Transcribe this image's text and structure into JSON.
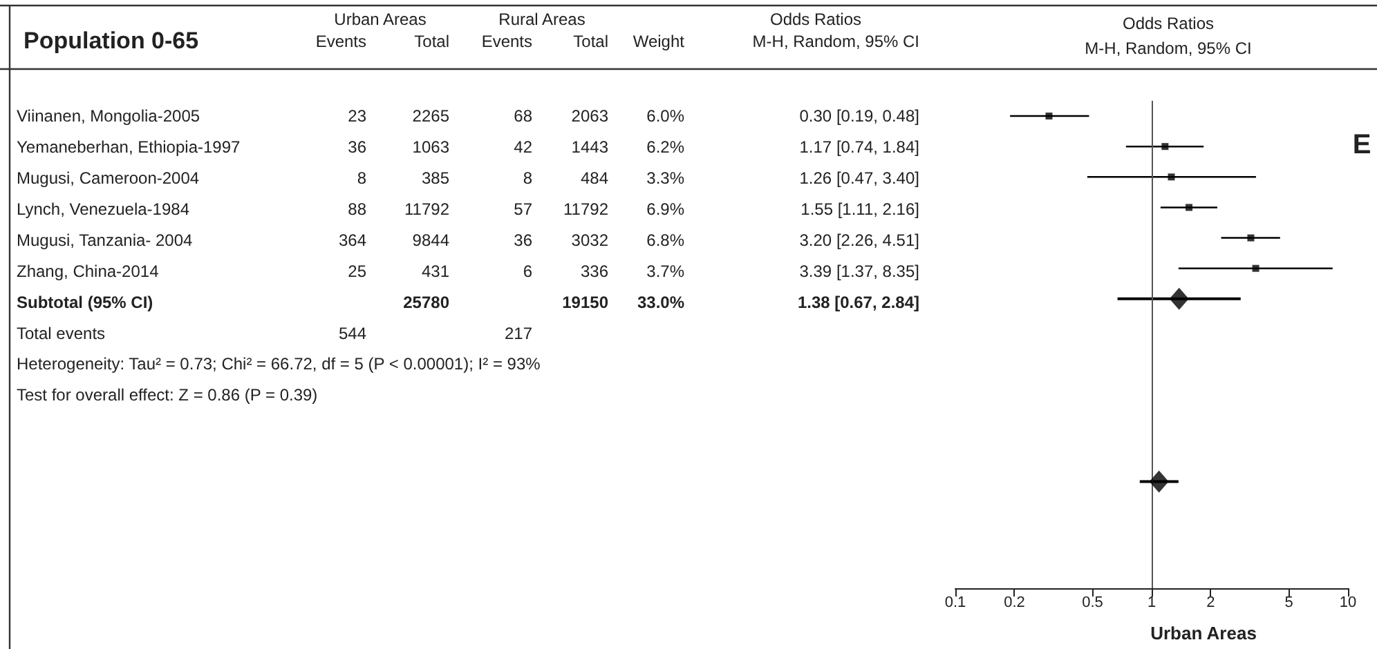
{
  "chart_data": [
    {
      "type": "other",
      "title": "Population 0-65",
      "annotations": [
        "Urban Areas",
        "Rural Areas",
        "Odds Ratios"
      ],
      "categories": [
        "Viinanen, Mongolia-2005",
        "Yemaneberhan, Ethiopia-1997",
        "Mugusi, Cameroon-2004",
        "Lynch, Venezuela-1984",
        "Mugusi, Tanzania- 2004",
        "Zhang, China-2014",
        "Subtotal (95% CI)",
        "Total events",
        "Heterogeneity: Tau² = 0.73; Chi² = 66.72, df = 5 (P < 0.00001); I² = 93%",
        "Test for overall effect: Z = 0.86 (P = 0.39)"
      ],
      "data_labels": true,
      "series": [
        {
          "name": "Events",
          "values": [
            23,
            36,
            8,
            88,
            364,
            25,
            null,
            544,
            null,
            null
          ]
        },
        {
          "name": "Total",
          "values": [
            2265,
            1063,
            385,
            11792,
            9844,
            431,
            25780,
            null,
            null,
            null
          ]
        },
        {
          "name": "Events",
          "values": [
            68,
            42,
            8,
            57,
            36,
            6,
            null,
            217,
            null,
            null
          ]
        },
        {
          "name": "Total",
          "values": [
            2063,
            1443,
            484,
            11792,
            3032,
            336,
            19150,
            null,
            null,
            null
          ]
        },
        {
          "name": "Weight",
          "values": [
            6.0,
            6.2,
            3.3,
            6.9,
            6.8,
            3.7,
            33.0,
            null,
            null,
            null
          ],
          "value_labels": [
            "6.0%",
            "6.2%",
            "3.3%",
            "6.9%",
            "6.8%",
            "3.7%",
            "33.0%",
            null,
            null,
            null
          ]
        },
        {
          "name": "M-H, Random, 95% CI",
          "values": [
            0.3,
            1.17,
            1.26,
            1.55,
            3.2,
            3.39,
            1.38,
            null,
            null,
            null
          ],
          "value_labels": [
            "0.30 [0.19, 0.48]",
            "1.17 [0.74, 1.84]",
            "1.26 [0.47, 3.40]",
            "1.55 [1.11, 2.16]",
            "3.20 [2.26, 4.51]",
            "3.39 [1.37, 8.35]",
            "1.38 [0.67, 2.84]",
            null,
            null,
            null
          ]
        }
      ]
    },
    {
      "type": "scatter",
      "orientation": "horizontal",
      "title": "Odds Ratios",
      "subtitle": "M-H, Random, 95% CI",
      "xlabel": "Urban Areas",
      "annotations": [
        "E"
      ],
      "log": "x",
      "xlim": [
        0.1,
        10
      ],
      "xticks": [
        0.1,
        0.2,
        0.5,
        1,
        2,
        5,
        10
      ],
      "ref_lines": [
        {
          "axis": "x",
          "value": 1
        }
      ],
      "categories": [
        null,
        null,
        null,
        null,
        null,
        null,
        null,
        null,
        null,
        null,
        null,
        null,
        null,
        null,
        null,
        null
      ],
      "series": [
        {
          "marker": "square",
          "color": "#000000",
          "values": [
            0.3,
            1.17,
            1.26,
            1.55,
            3.2,
            3.39,
            null,
            null,
            null,
            null,
            null,
            null,
            null,
            null,
            null,
            null
          ],
          "errors": [
            [
              0.19,
              0.48
            ],
            [
              0.74,
              1.84
            ],
            [
              0.47,
              3.4
            ],
            [
              1.11,
              2.16
            ],
            [
              2.26,
              4.51
            ],
            [
              1.37,
              8.35
            ],
            null,
            null,
            null,
            null,
            null,
            null,
            null,
            null,
            null,
            null
          ]
        },
        {
          "marker": "diamond",
          "color": "#000000",
          "values": [
            null,
            null,
            null,
            null,
            null,
            null,
            1.38,
            null,
            null,
            null,
            null,
            null,
            null,
            null,
            null,
            null
          ],
          "errors": [
            null,
            null,
            null,
            null,
            null,
            null,
            [
              0.67,
              2.84
            ],
            null,
            null,
            null,
            null,
            null,
            null,
            null,
            null,
            null
          ]
        },
        {
          "marker": "diamond",
          "color": "#000000",
          "values": [
            null,
            null,
            null,
            null,
            null,
            null,
            null,
            null,
            null,
            null,
            null,
            null,
            1.09,
            null,
            null,
            null
          ],
          "errors": [
            null,
            null,
            null,
            null,
            null,
            null,
            null,
            null,
            null,
            null,
            null,
            null,
            [
              0.87,
              1.37
            ],
            null,
            null,
            null
          ]
        }
      ]
    }
  ]
}
